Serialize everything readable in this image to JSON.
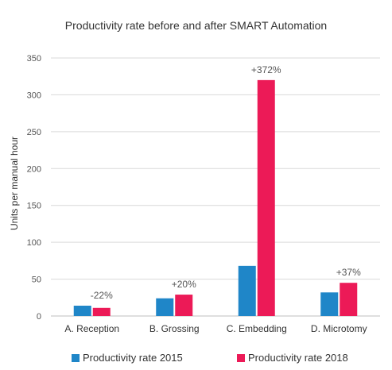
{
  "chart_data": {
    "type": "bar",
    "title": "Productivity rate before and after SMART Automation",
    "ylabel": "Units per manual hour",
    "xlabel": "",
    "categories": [
      "A. Reception",
      "B. Grossing",
      "C. Embedding",
      "D. Microtomy"
    ],
    "series": [
      {
        "name": "Productivity rate 2015",
        "color": "#1f86c8",
        "values": [
          14,
          24,
          68,
          32
        ]
      },
      {
        "name": "Productivity rate 2018",
        "color": "#ec1a57",
        "values": [
          11,
          29,
          320,
          45
        ]
      }
    ],
    "annotations": [
      "-22%",
      "+20%",
      "+372%",
      "+37%"
    ],
    "ylim": [
      0,
      350
    ],
    "yticks": [
      "0",
      "50",
      "100",
      "150",
      "200",
      "250",
      "300",
      "350"
    ],
    "grid": true,
    "legend_position": "bottom"
  }
}
